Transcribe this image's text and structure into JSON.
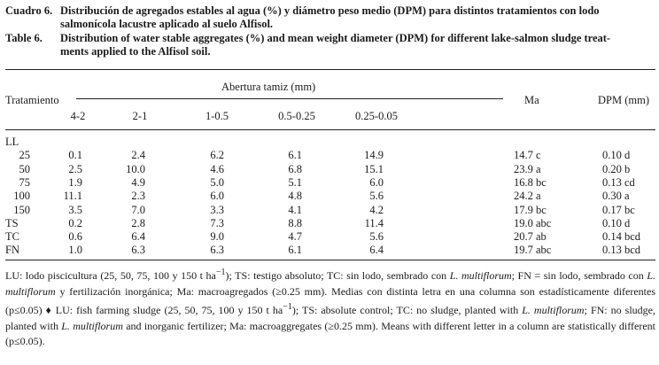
{
  "caption": {
    "es_label": "Cuadro 6.",
    "es_line1": "Distribución de agregados estables al agua (%) y diámetro peso medio (DPM) para distintos tratamientos con lodo",
    "es_line2": "salmonícola lacustre aplicado al suelo Alfisol.",
    "en_label": "Table 6.",
    "en_line1": "Distribution of water stable aggregates (%) and mean weight diameter (DPM) for different lake-salmon sludge treat-",
    "en_line2": "ments applied to the Alfisol soil."
  },
  "table": {
    "header": {
      "treatment": "Tratamiento",
      "group": "Abertura tamiz (mm)",
      "sieves": [
        "4-2",
        "2-1",
        "1-0.5",
        "0.5-0.25",
        "0.25-0.05"
      ],
      "ma": "Ma",
      "dpm": "DPM (mm)"
    },
    "rows": [
      {
        "label": "LL",
        "group": true,
        "values": [
          "",
          "",
          "",
          "",
          "",
          "",
          ""
        ]
      },
      {
        "label": "25",
        "values": [
          "0.1",
          "2.4",
          "6.2",
          "6.1",
          "14.9",
          "14.7 c",
          "0.10 d"
        ]
      },
      {
        "label": "50",
        "values": [
          "2.5",
          "10.0",
          "4.6",
          "6.8",
          "15.1",
          "23.9 a",
          "0.20 b"
        ]
      },
      {
        "label": "75",
        "values": [
          "1.9",
          "4.9",
          "5.0",
          "5.1",
          "6.0",
          "16.8 bc",
          "0.13 cd"
        ]
      },
      {
        "label": "100",
        "values": [
          "11.1",
          "2.3",
          "6.0",
          "4.8",
          "5.6",
          "24.2 a",
          "0.30 a"
        ]
      },
      {
        "label": "150",
        "values": [
          "3.5",
          "7.0",
          "3.3",
          "4.1",
          "4.2",
          "17.9 bc",
          "0.17 bc"
        ]
      },
      {
        "label": "TS",
        "values": [
          "0.2",
          "2.8",
          "7.3",
          "8.8",
          "11.4",
          "19.0 abc",
          "0.10 d"
        ]
      },
      {
        "label": "TC",
        "values": [
          "0.6",
          "6.4",
          "9.0",
          "4.7",
          "5.6",
          "20.7 ab",
          "0.14 bcd"
        ]
      },
      {
        "label": "FN",
        "values": [
          "1.0",
          "6.3",
          "6.3",
          "6.1",
          "6.4",
          "19.7 abc",
          "0.13 bcd"
        ]
      }
    ]
  },
  "footnote": {
    "p1": "LU: lodo piscicultura (25, 50, 75, 100 y 150 t ha",
    "sup1": "−1",
    "p2": "); TS: testigo absoluto; TC: sin lodo, sembrado con ",
    "sp1": "L. multiflorum",
    "p3": "; FN = sin lodo, sembrado con ",
    "sp2": "L. multiflorum",
    "p4": " y fertilización inorgánica; Ma: macroagregados (≥0.25 mm). Medias con distinta letra en una columna son estadísticamente diferentes (p≤0.05) ♦ LU: fish farming sludge (25, 50, 75, 100 y 150 t ha",
    "sup2": "−1",
    "p5": "); TS: absolute control; TC: no sludge, planted with ",
    "sp3": "L. multiflorum",
    "p6": "; FN: no sludge, planted with ",
    "sp4": "L. multiflorum",
    "p7": " and inorganic fertilizer; Ma: macroaggregates (≥0.25 mm). Means with different letter in a column are statistically different (p≤0.05)."
  }
}
